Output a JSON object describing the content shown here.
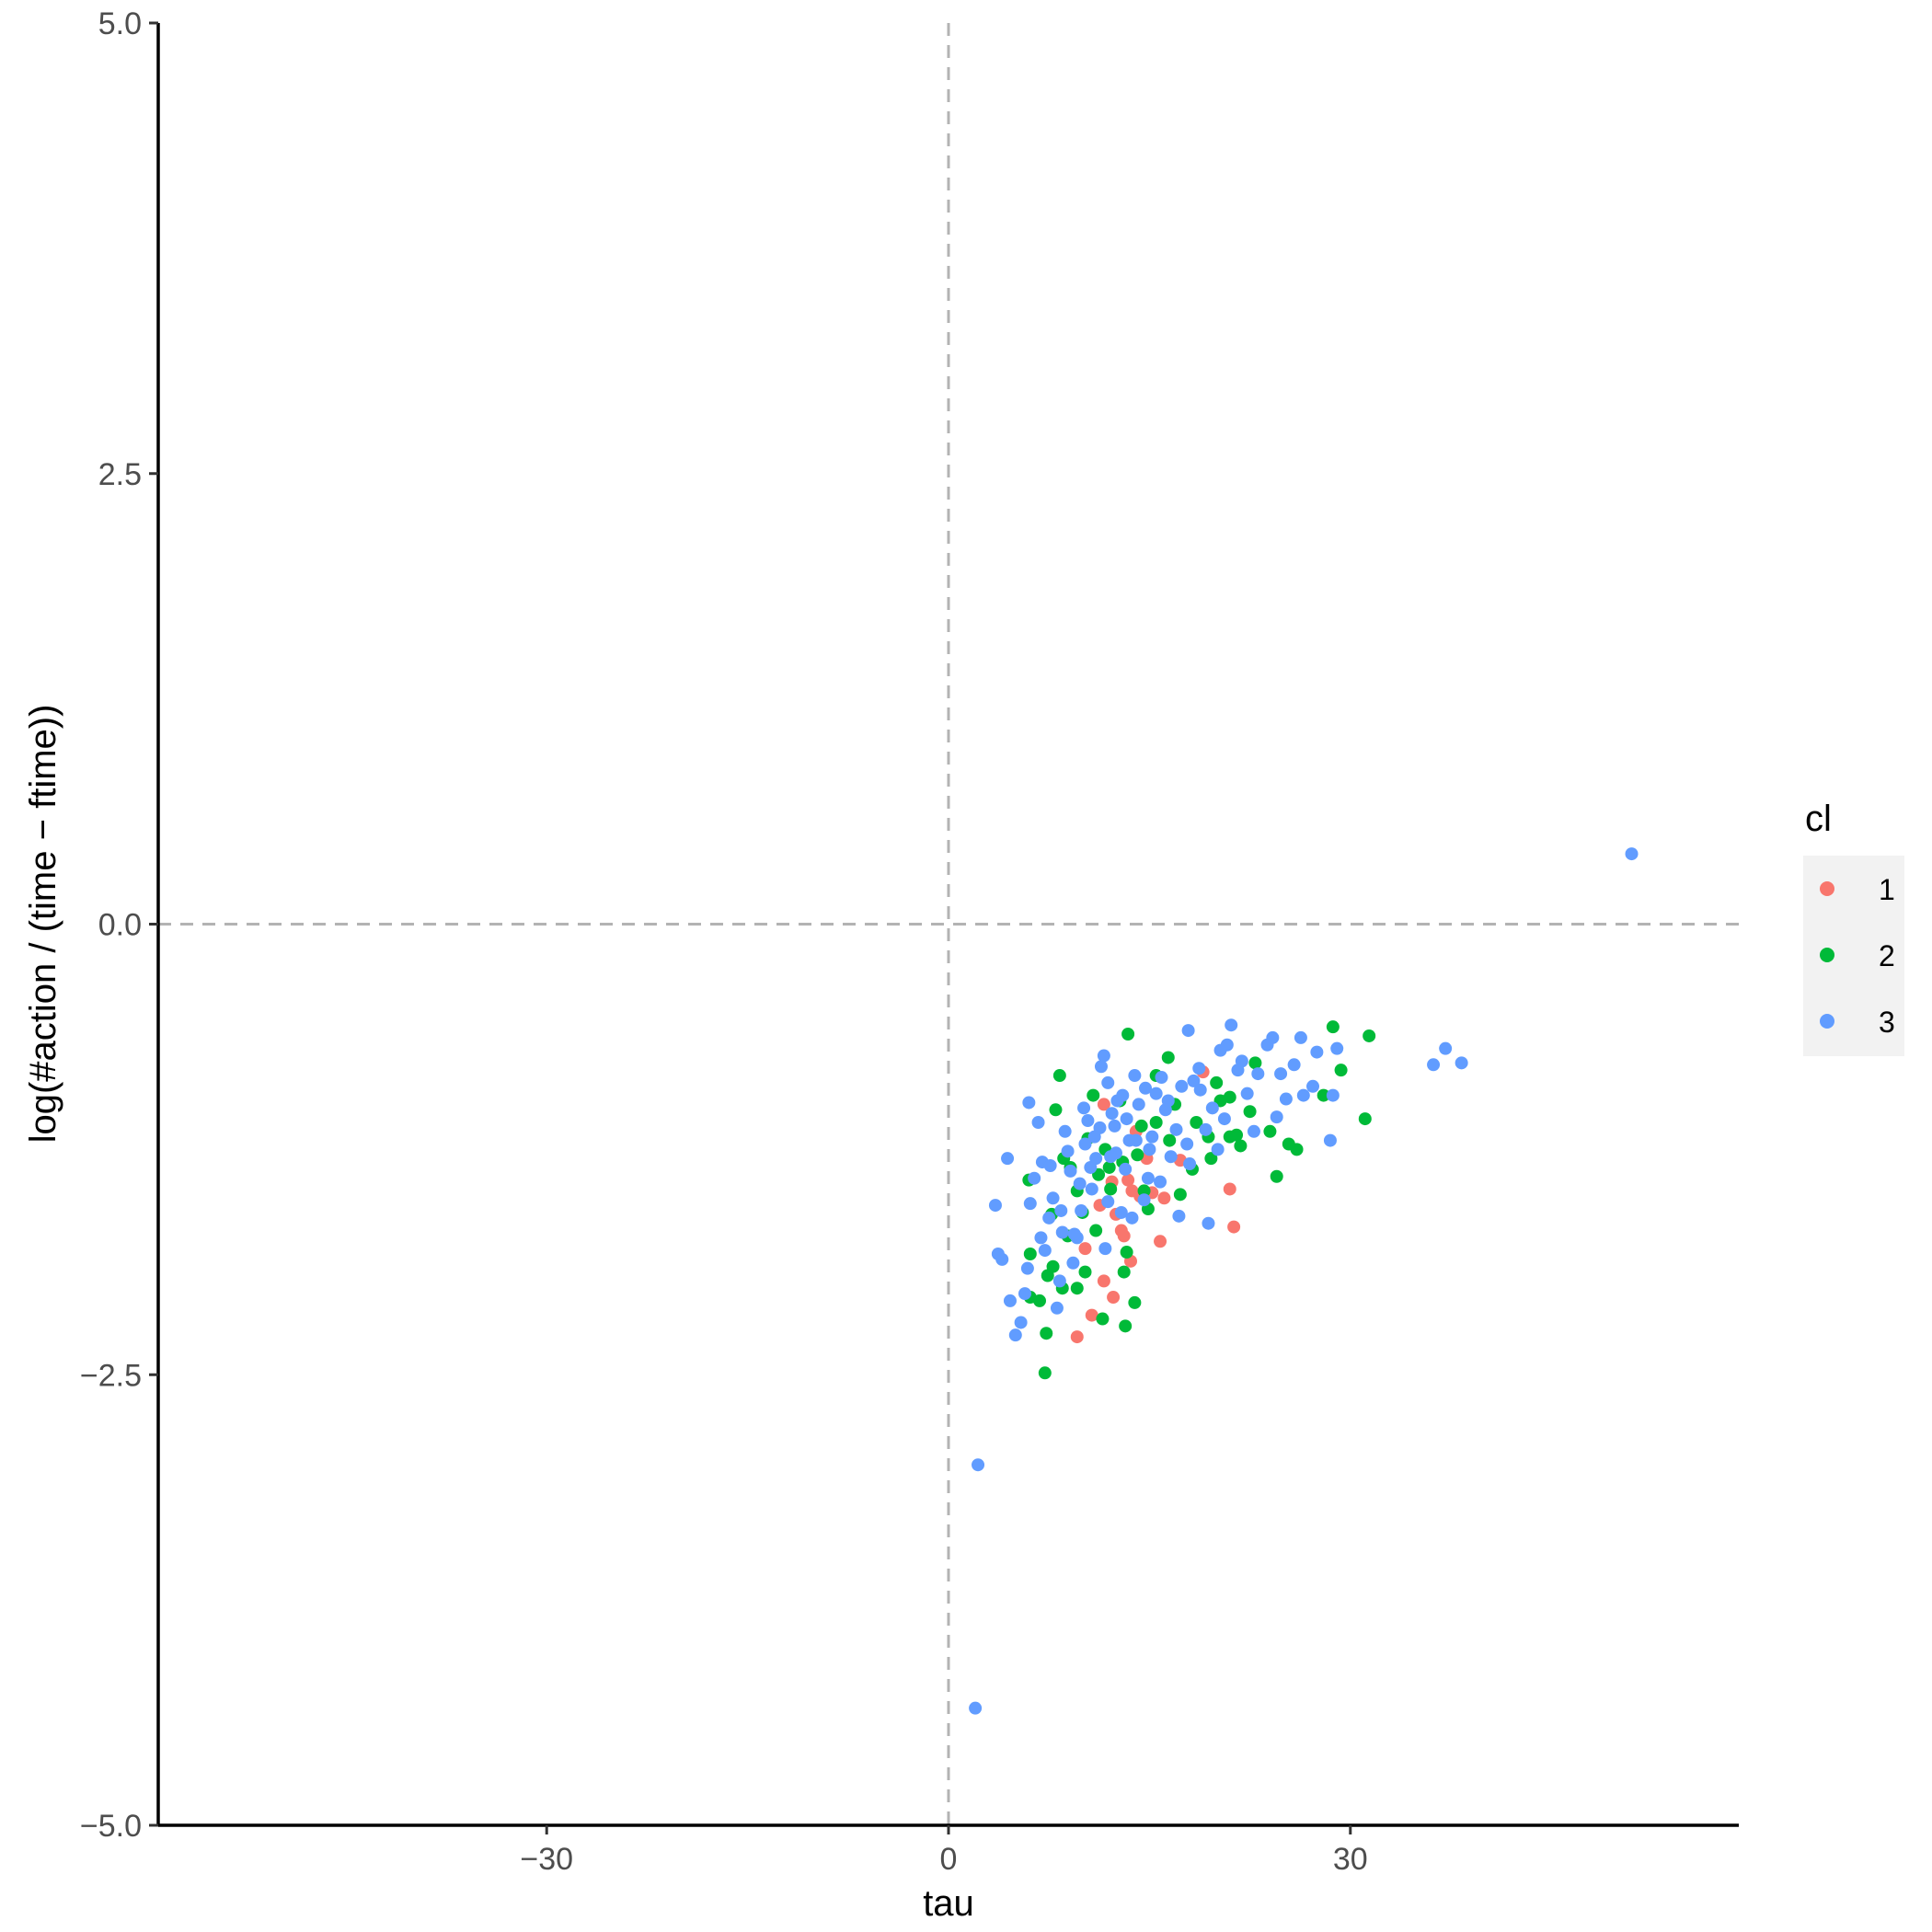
{
  "chart_data": {
    "type": "scatter",
    "xlabel": "tau",
    "ylabel": "log(#action / (time − ftime))",
    "xlim": [
      -59,
      59
    ],
    "ylim": [
      -5,
      5
    ],
    "x_ticks": [
      -30,
      0,
      30
    ],
    "x_tick_labels": [
      "−30",
      "0",
      "30"
    ],
    "y_ticks": [
      -5,
      -2.5,
      0,
      2.5,
      5
    ],
    "y_tick_labels": [
      "−5.0",
      "−2.5",
      "0.0",
      "2.5",
      "5.0"
    ],
    "grid": false,
    "reference_lines": [
      {
        "axis": "x",
        "value": 0,
        "style": "dashed",
        "color": "#b3b3b3"
      },
      {
        "axis": "y",
        "value": 0,
        "style": "dashed",
        "color": "#b3b3b3"
      }
    ],
    "legend": {
      "title": "cl",
      "position": "right",
      "entries": [
        "1",
        "2",
        "3"
      ]
    },
    "colors": {
      "1": "#F8766D",
      "2": "#00BA38",
      "3": "#619CFF"
    },
    "series": [
      {
        "name": "1",
        "points": [
          [
            19.0,
            -0.82
          ],
          [
            16.1,
            -1.52
          ],
          [
            21.0,
            -1.47
          ],
          [
            21.3,
            -1.68
          ],
          [
            15.8,
            -1.76
          ],
          [
            14.3,
            -1.51
          ],
          [
            13.1,
            -1.73
          ],
          [
            13.6,
            -1.87
          ],
          [
            11.6,
            -1.98
          ],
          [
            12.3,
            -2.07
          ],
          [
            10.7,
            -2.17
          ],
          [
            9.6,
            -2.29
          ],
          [
            12.5,
            -1.61
          ],
          [
            12.9,
            -1.7
          ],
          [
            10.2,
            -1.8
          ],
          [
            14.8,
            -1.3
          ],
          [
            12.2,
            -1.43
          ],
          [
            13.7,
            -1.48
          ],
          [
            17.3,
            -1.31
          ],
          [
            11.3,
            -1.56
          ],
          [
            15.2,
            -1.49
          ],
          [
            11.6,
            -1.0
          ],
          [
            14.0,
            -1.15
          ],
          [
            13.4,
            -1.42
          ]
        ]
      },
      {
        "name": "2",
        "points": [
          [
            28.7,
            -0.57
          ],
          [
            31.4,
            -0.62
          ],
          [
            31.1,
            -1.08
          ],
          [
            29.3,
            -0.81
          ],
          [
            26.0,
            -1.25
          ],
          [
            25.4,
            -1.22
          ],
          [
            24.5,
            -1.4
          ],
          [
            22.9,
            -0.77
          ],
          [
            21.5,
            -1.17
          ],
          [
            21.0,
            -0.96
          ],
          [
            20.0,
            -0.88
          ],
          [
            19.4,
            -1.18
          ],
          [
            18.2,
            -1.36
          ],
          [
            17.3,
            -1.5
          ],
          [
            16.4,
            -0.74
          ],
          [
            15.5,
            -0.84
          ],
          [
            14.9,
            -1.58
          ],
          [
            14.1,
            -1.28
          ],
          [
            13.4,
            -0.61
          ],
          [
            13.0,
            -1.32
          ],
          [
            12.8,
            -0.98
          ],
          [
            11.7,
            -1.25
          ],
          [
            11.2,
            -1.39
          ],
          [
            10.8,
            -0.95
          ],
          [
            10.4,
            -1.19
          ],
          [
            9.6,
            -1.48
          ],
          [
            8.9,
            -1.73
          ],
          [
            8.3,
            -0.84
          ],
          [
            8.0,
            -1.03
          ],
          [
            7.7,
            -1.61
          ],
          [
            7.4,
            -1.95
          ],
          [
            7.3,
            -2.27
          ],
          [
            7.2,
            -2.49
          ],
          [
            6.8,
            -2.09
          ],
          [
            6.1,
            -2.07
          ],
          [
            6.1,
            -1.83
          ],
          [
            6.0,
            -1.42
          ],
          [
            8.5,
            -2.02
          ],
          [
            9.6,
            -2.02
          ],
          [
            10.2,
            -1.93
          ],
          [
            11.5,
            -2.19
          ],
          [
            13.2,
            -2.23
          ],
          [
            13.9,
            -2.1
          ],
          [
            13.1,
            -1.93
          ],
          [
            13.3,
            -1.82
          ],
          [
            12.1,
            -1.47
          ],
          [
            14.4,
            -1.12
          ],
          [
            15.5,
            -1.1
          ],
          [
            16.9,
            -1.0
          ],
          [
            18.5,
            -1.1
          ],
          [
            19.6,
            -1.3
          ],
          [
            21.0,
            -1.18
          ],
          [
            21.8,
            -1.23
          ],
          [
            9.1,
            -1.35
          ],
          [
            10.0,
            -1.6
          ],
          [
            11.0,
            -1.7
          ],
          [
            8.6,
            -1.3
          ],
          [
            7.8,
            -1.9
          ],
          [
            12.0,
            -1.35
          ],
          [
            14.6,
            -1.48
          ],
          [
            16.5,
            -1.2
          ],
          [
            20.3,
            -0.98
          ],
          [
            22.5,
            -1.04
          ],
          [
            28.0,
            -0.95
          ],
          [
            24.0,
            -1.15
          ]
        ]
      },
      {
        "name": "3",
        "points": [
          [
            51.0,
            0.39
          ],
          [
            38.3,
            -0.77
          ],
          [
            37.1,
            -0.69
          ],
          [
            36.2,
            -0.78
          ],
          [
            29.0,
            -0.69
          ],
          [
            28.7,
            -0.95
          ],
          [
            28.5,
            -1.2
          ],
          [
            27.5,
            -0.71
          ],
          [
            27.2,
            -0.9
          ],
          [
            26.3,
            -0.63
          ],
          [
            25.8,
            -0.78
          ],
          [
            25.2,
            -0.97
          ],
          [
            24.8,
            -0.83
          ],
          [
            24.2,
            -0.63
          ],
          [
            23.8,
            -0.67
          ],
          [
            23.1,
            -0.83
          ],
          [
            22.3,
            -0.94
          ],
          [
            21.9,
            -0.76
          ],
          [
            21.6,
            -0.81
          ],
          [
            21.1,
            -0.56
          ],
          [
            20.8,
            -0.67
          ],
          [
            20.3,
            -0.7
          ],
          [
            19.7,
            -1.02
          ],
          [
            19.2,
            -1.14
          ],
          [
            18.7,
            -0.8
          ],
          [
            18.3,
            -0.87
          ],
          [
            17.9,
            -0.59
          ],
          [
            17.4,
            -0.9
          ],
          [
            17.0,
            -1.14
          ],
          [
            16.6,
            -1.29
          ],
          [
            16.2,
            -1.03
          ],
          [
            15.9,
            -0.85
          ],
          [
            15.5,
            -0.94
          ],
          [
            15.2,
            -1.18
          ],
          [
            14.9,
            -1.41
          ],
          [
            14.6,
            -1.53
          ],
          [
            14.2,
            -1.0
          ],
          [
            13.9,
            -0.84
          ],
          [
            13.5,
            -1.2
          ],
          [
            13.2,
            -1.36
          ],
          [
            12.9,
            -1.6
          ],
          [
            12.5,
            -1.27
          ],
          [
            12.2,
            -1.05
          ],
          [
            11.9,
            -0.88
          ],
          [
            11.6,
            -0.73
          ],
          [
            11.4,
            -0.79
          ],
          [
            11.3,
            -1.13
          ],
          [
            11.0,
            -1.3
          ],
          [
            10.7,
            -1.47
          ],
          [
            10.4,
            -1.09
          ],
          [
            10.2,
            -1.22
          ],
          [
            9.9,
            -1.59
          ],
          [
            9.6,
            -1.74
          ],
          [
            9.3,
            -1.88
          ],
          [
            9.1,
            -1.37
          ],
          [
            8.9,
            -1.26
          ],
          [
            8.7,
            -1.15
          ],
          [
            8.5,
            -1.71
          ],
          [
            8.3,
            -1.98
          ],
          [
            8.1,
            -2.13
          ],
          [
            7.8,
            -1.52
          ],
          [
            7.5,
            -1.63
          ],
          [
            7.2,
            -1.81
          ],
          [
            7.0,
            -1.32
          ],
          [
            6.7,
            -1.1
          ],
          [
            6.4,
            -1.41
          ],
          [
            6.1,
            -1.55
          ],
          [
            5.9,
            -1.91
          ],
          [
            5.7,
            -2.05
          ],
          [
            5.4,
            -2.21
          ],
          [
            5.0,
            -2.28
          ],
          [
            4.6,
            -2.09
          ],
          [
            4.0,
            -1.86
          ],
          [
            3.7,
            -1.83
          ],
          [
            3.5,
            -1.56
          ],
          [
            4.4,
            -1.3
          ],
          [
            6.0,
            -0.99
          ],
          [
            7.6,
            -1.34
          ],
          [
            9.4,
            -1.72
          ],
          [
            11.7,
            -1.8
          ],
          [
            13.7,
            -1.63
          ],
          [
            15.8,
            -1.43
          ],
          [
            18.0,
            -1.33
          ],
          [
            19.4,
            -1.66
          ],
          [
            17.2,
            -1.62
          ],
          [
            14.0,
            -1.2
          ],
          [
            12.6,
            -0.98
          ],
          [
            10.9,
            -1.18
          ],
          [
            12.1,
            -1.29
          ],
          [
            13.3,
            -1.08
          ],
          [
            14.7,
            -0.91
          ],
          [
            16.4,
            -0.98
          ],
          [
            18.8,
            -0.92
          ],
          [
            20.6,
            -1.08
          ],
          [
            22.8,
            -1.15
          ],
          [
            24.5,
            -1.07
          ],
          [
            26.5,
            -0.95
          ],
          [
            9.8,
            -1.44
          ],
          [
            8.4,
            -1.59
          ],
          [
            6.9,
            -1.74
          ],
          [
            11.9,
            -1.54
          ],
          [
            10.6,
            -1.35
          ],
          [
            15.0,
            -1.25
          ],
          [
            17.8,
            -1.22
          ],
          [
            20.1,
            -1.25
          ],
          [
            2.2,
            -3.0
          ],
          [
            2.0,
            -4.35
          ],
          [
            10.1,
            -1.02
          ],
          [
            12.4,
            -1.12
          ],
          [
            13.0,
            -0.95
          ]
        ]
      }
    ]
  }
}
